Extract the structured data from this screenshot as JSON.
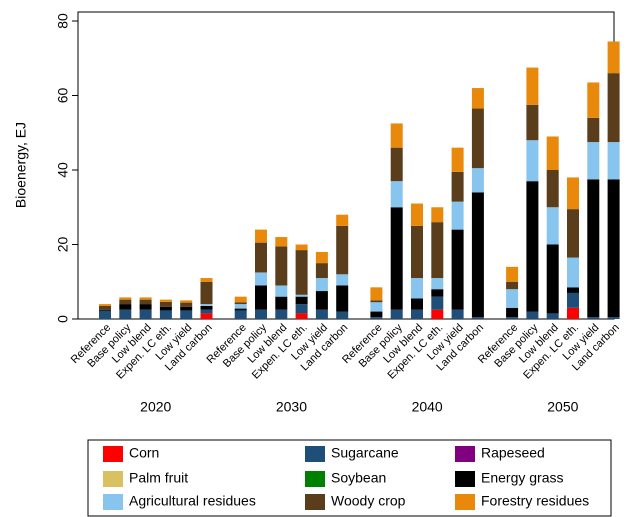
{
  "chart_data": {
    "type": "grouped-stacked-bar",
    "y_label": "Bioenergy, EJ",
    "groups": [
      "2020",
      "2030",
      "2040",
      "2050"
    ],
    "categories": [
      "Reference",
      "Base policy",
      "Low blend",
      "Expen. LC eth.",
      "Low yield",
      "Land carbon"
    ],
    "ylim": [
      0,
      80
    ],
    "yticks": [
      0,
      20,
      40,
      60,
      80
    ],
    "series": [
      {
        "name": "Corn",
        "color": "#ff0000",
        "values": [
          [
            0,
            0,
            0,
            0,
            0,
            1.5
          ],
          [
            0,
            0,
            0,
            1.5,
            0,
            0
          ],
          [
            0,
            0,
            0,
            2.5,
            0,
            0
          ],
          [
            0,
            0,
            0,
            3,
            0,
            0
          ]
        ]
      },
      {
        "name": "Sugarcane",
        "color": "#1f4e79",
        "values": [
          [
            2.2,
            2.5,
            2.5,
            2.3,
            2.3,
            1
          ],
          [
            2.3,
            2.5,
            2.5,
            2.5,
            2.5,
            2
          ],
          [
            0.5,
            2.5,
            2.5,
            3.5,
            2.5,
            0.5
          ],
          [
            0.5,
            2,
            1.5,
            4,
            0.5,
            0.5
          ]
        ]
      },
      {
        "name": "Rapeseed",
        "color": "#800080",
        "values": [
          [
            0,
            0,
            0,
            0,
            0,
            0
          ],
          [
            0,
            0,
            0,
            0,
            0,
            0
          ],
          [
            0,
            0,
            0,
            0,
            0,
            0
          ],
          [
            0,
            0,
            0,
            0,
            0,
            0
          ]
        ]
      },
      {
        "name": "Palm fruit",
        "color": "#d9c060",
        "values": [
          [
            0,
            0,
            0,
            0,
            0,
            0
          ],
          [
            0,
            0,
            0,
            0,
            0,
            0
          ],
          [
            0,
            0,
            0,
            0,
            0,
            0
          ],
          [
            0,
            0,
            0,
            0,
            0,
            0
          ]
        ]
      },
      {
        "name": "Soybean",
        "color": "#008000",
        "values": [
          [
            0,
            0,
            0,
            0,
            0,
            0
          ],
          [
            0,
            0,
            0,
            0,
            0,
            0
          ],
          [
            0,
            0,
            0,
            0,
            0,
            0
          ],
          [
            0,
            0,
            0,
            0,
            0,
            0
          ]
        ]
      },
      {
        "name": "Energy grass",
        "color": "#000000",
        "values": [
          [
            0.3,
            1.5,
            1.5,
            1,
            1,
            1
          ],
          [
            0.5,
            6.5,
            3.5,
            2,
            5,
            7
          ],
          [
            1.5,
            27.5,
            3,
            2,
            21.5,
            33.5
          ],
          [
            2.5,
            35,
            18.5,
            1.5,
            37,
            37
          ]
        ]
      },
      {
        "name": "Agricultural residues",
        "color": "#87c5ee",
        "values": [
          [
            0,
            0,
            0,
            0,
            0,
            0.5
          ],
          [
            1.2,
            3.5,
            3,
            0.5,
            3.5,
            3
          ],
          [
            2.5,
            7,
            5.5,
            3,
            7.5,
            6.5
          ],
          [
            5,
            11,
            10,
            8,
            10,
            10
          ]
        ]
      },
      {
        "name": "Woody crop",
        "color": "#5a3e1b",
        "values": [
          [
            1,
            1.2,
            1.2,
            1.3,
            1.1,
            6
          ],
          [
            0.5,
            8,
            10.5,
            12,
            4,
            13
          ],
          [
            0.5,
            9,
            14,
            15,
            8,
            16
          ],
          [
            2,
            9.5,
            10,
            13,
            6.5,
            18.5
          ]
        ]
      },
      {
        "name": "Forestry residues",
        "color": "#e8890c",
        "values": [
          [
            0.5,
            0.6,
            0.6,
            0.6,
            0.6,
            1
          ],
          [
            1.5,
            3.5,
            2.5,
            1.5,
            3,
            3
          ],
          [
            3.5,
            6.5,
            6,
            4,
            6.5,
            5.5
          ],
          [
            4,
            10,
            9,
            8.5,
            9.5,
            8.5
          ]
        ]
      }
    ]
  }
}
